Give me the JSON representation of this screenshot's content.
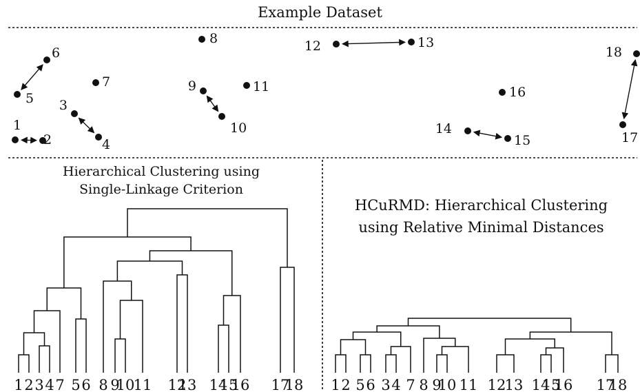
{
  "dataset": {
    "title": "Example Dataset",
    "points": [
      {
        "id": "1",
        "label": "1"
      },
      {
        "id": "2",
        "label": "2"
      },
      {
        "id": "3",
        "label": "3"
      },
      {
        "id": "4",
        "label": "4"
      },
      {
        "id": "5",
        "label": "5"
      },
      {
        "id": "6",
        "label": "6"
      },
      {
        "id": "7",
        "label": "7"
      },
      {
        "id": "8",
        "label": "8"
      },
      {
        "id": "9",
        "label": "9"
      },
      {
        "id": "10",
        "label": "10"
      },
      {
        "id": "11",
        "label": "11"
      },
      {
        "id": "12",
        "label": "12"
      },
      {
        "id": "13",
        "label": "13"
      },
      {
        "id": "14",
        "label": "14"
      },
      {
        "id": "15",
        "label": "15"
      },
      {
        "id": "16",
        "label": "16"
      },
      {
        "id": "17",
        "label": "17"
      },
      {
        "id": "18",
        "label": "18"
      }
    ],
    "mutual_nearest_pairs": [
      [
        "1",
        "2"
      ],
      [
        "3",
        "4"
      ],
      [
        "5",
        "6"
      ],
      [
        "9",
        "10"
      ],
      [
        "12",
        "13"
      ],
      [
        "14",
        "15"
      ],
      [
        "17",
        "18"
      ]
    ]
  },
  "single_linkage": {
    "title_line1": "Hierarchical Clustering using",
    "title_line2": "Single-Linkage Criterion",
    "leaf_order": [
      "1",
      "2",
      "3",
      "4",
      "7",
      "5",
      "6",
      "8",
      "9",
      "10",
      "11",
      "12",
      "13",
      "14",
      "15",
      "16",
      "17",
      "18"
    ]
  },
  "hcurmd": {
    "title_line1": "HCuRMD: Hierarchical Clustering",
    "title_line2": "using Relative Minimal Distances",
    "leaf_order": [
      "1",
      "2",
      "5",
      "6",
      "3",
      "4",
      "7",
      "8",
      "9",
      "10",
      "11",
      "12",
      "13",
      "14",
      "15",
      "16",
      "17",
      "18"
    ]
  },
  "colors": {
    "ink": "#111111",
    "background": "#ffffff"
  }
}
